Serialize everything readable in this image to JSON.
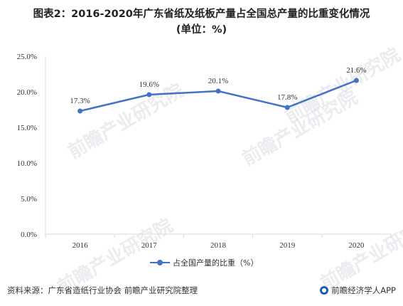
{
  "title": {
    "line1": "图表2：2016-2020年广东省纸及纸板产量占全国总产量的比重变化情况",
    "line2": "(单位：%)"
  },
  "chart_data": {
    "type": "line",
    "x": [
      "2016",
      "2017",
      "2018",
      "2019",
      "2020"
    ],
    "series": [
      {
        "name": "占全国产量的比重（%）",
        "values": [
          17.3,
          19.6,
          20.1,
          17.8,
          21.6
        ],
        "labels": [
          "17.3%",
          "19.6%",
          "20.1%",
          "17.8%",
          "21.6%"
        ],
        "color": "#4472c4"
      }
    ],
    "ylim": [
      0,
      25
    ],
    "yticks": [
      "0.0%",
      "5.0%",
      "10.0%",
      "15.0%",
      "20.0%",
      "25.0%"
    ],
    "grid": false,
    "legend": "bottom"
  },
  "legend": {
    "label": "占全国产量的比重（%）"
  },
  "footer": {
    "source": "资料来源：广东省造纸行业协会 前瞻产业研究院整理",
    "brand": "前瞻经济学人APP"
  },
  "watermark": {
    "text": "前瞻产业研究院"
  }
}
